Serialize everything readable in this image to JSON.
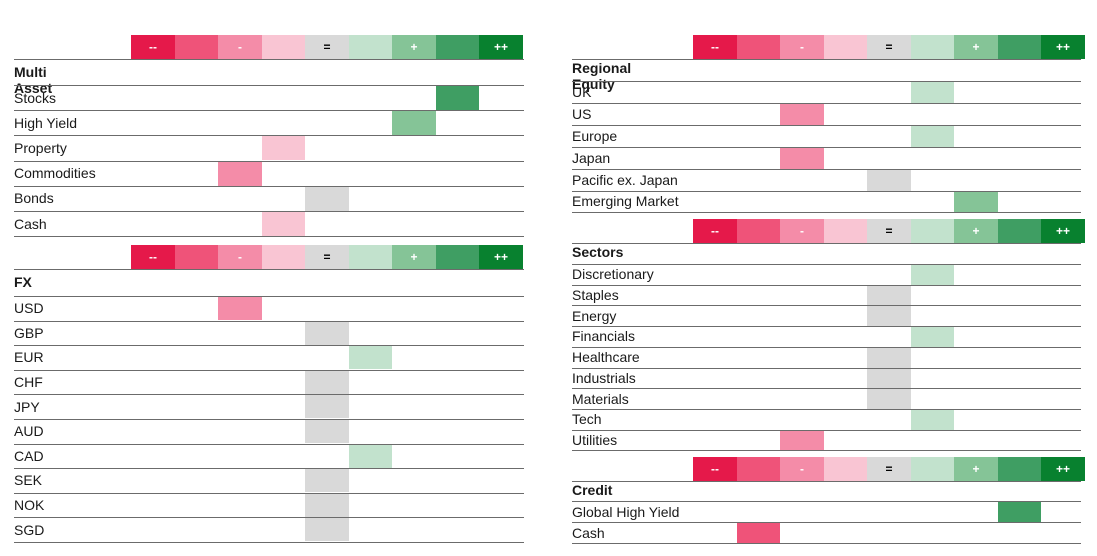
{
  "scale": {
    "labels": [
      "--",
      "",
      "-",
      "",
      "=",
      "",
      "+",
      "",
      "++"
    ],
    "colors": [
      "#e5194a",
      "#ef5379",
      "#f48ca8",
      "#f9c5d3",
      "#d9d9d9",
      "#c2e2cd",
      "#85c497",
      "#3f9e63",
      "#08812f"
    ],
    "text_colors": [
      "#ffffff",
      "#ffffff",
      "#ffffff",
      "#ffffff",
      "#000000",
      "#ffffff",
      "#ffffff",
      "#ffffff",
      "#ffffff"
    ]
  },
  "left": [
    {
      "title": "Multi Asset",
      "rows": [
        {
          "label": "Stocks",
          "level": 7
        },
        {
          "label": "High Yield",
          "level": 6
        },
        {
          "label": "Property",
          "level": 3
        },
        {
          "label": "Commodities",
          "level": 2
        },
        {
          "label": "Bonds",
          "level": 4
        },
        {
          "label": "Cash",
          "level": 3
        }
      ]
    },
    {
      "title": "FX",
      "rows": [
        {
          "label": "USD",
          "level": 2
        },
        {
          "label": "GBP",
          "level": 4
        },
        {
          "label": "EUR",
          "level": 5
        },
        {
          "label": "CHF",
          "level": 4
        },
        {
          "label": "JPY",
          "level": 4
        },
        {
          "label": "AUD",
          "level": 4
        },
        {
          "label": "CAD",
          "level": 5
        },
        {
          "label": "SEK",
          "level": 4
        },
        {
          "label": "NOK",
          "level": 4
        },
        {
          "label": "SGD",
          "level": 4
        }
      ]
    }
  ],
  "right": [
    {
      "title": "Regional Equity",
      "rows": [
        {
          "label": "UK",
          "level": 5
        },
        {
          "label": "US",
          "level": 2
        },
        {
          "label": "Europe",
          "level": 5
        },
        {
          "label": "Japan",
          "level": 2
        },
        {
          "label": "Pacific ex. Japan",
          "level": 4
        },
        {
          "label": "Emerging Market",
          "level": 6
        }
      ]
    },
    {
      "title": "Sectors",
      "rows": [
        {
          "label": "Discretionary",
          "level": 5
        },
        {
          "label": "Staples",
          "level": 4
        },
        {
          "label": "Energy",
          "level": 4
        },
        {
          "label": "Financials",
          "level": 5
        },
        {
          "label": "Healthcare",
          "level": 4
        },
        {
          "label": "Industrials",
          "level": 4
        },
        {
          "label": "Materials",
          "level": 4
        },
        {
          "label": "Tech",
          "level": 5
        },
        {
          "label": "Utilities",
          "level": 2
        }
      ]
    },
    {
      "title": "Credit",
      "rows": [
        {
          "label": "Global High Yield",
          "level": 7
        },
        {
          "label": "Cash",
          "level": 1
        }
      ]
    }
  ]
}
